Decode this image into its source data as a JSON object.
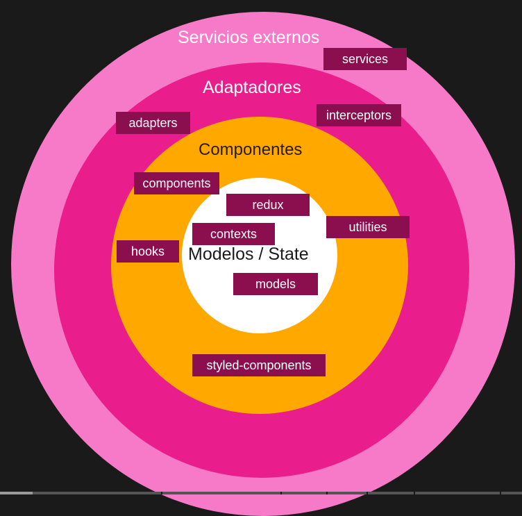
{
  "layers": {
    "outer": "Servicios externos",
    "adapters": "Adaptadores",
    "components": "Componentes",
    "core": "Modelos / State"
  },
  "tags": {
    "services": "services",
    "interceptors": "interceptors",
    "adapters": "adapters",
    "components": "components",
    "redux": "redux",
    "utilities": "utilities",
    "contexts": "contexts",
    "hooks": "hooks",
    "models": "models",
    "styled_components": "styled-components"
  },
  "colors": {
    "outer_ring": "#f77ac8",
    "adapters_ring": "#e91e8c",
    "components_ring": "#ffa800",
    "core": "#ffffff",
    "tag_background": "#8b0f4e"
  },
  "video_progress": 0.063
}
